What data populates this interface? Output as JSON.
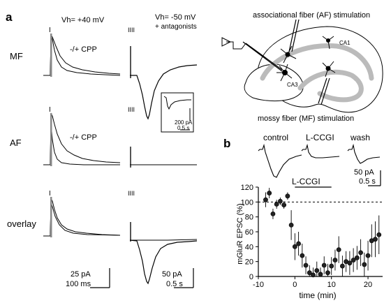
{
  "panel_a": {
    "letter": "a",
    "left_header": "Vh= +40 mV",
    "right_header_line1": "Vh= -50 mV",
    "right_header_line2": "+ antagonists",
    "rows": [
      {
        "label": "MF",
        "annotation": "-/+ CPP"
      },
      {
        "label": "AF",
        "annotation": "-/+ CPP"
      },
      {
        "label": "overlay",
        "annotation": ""
      }
    ],
    "inset_scale": {
      "y": "200 pA",
      "x": "0.5 s"
    },
    "left_scale": {
      "y": "25 pA",
      "x": "100 ms"
    },
    "right_scale": {
      "y": "50 pA",
      "x": "0.5 s"
    },
    "stim_mark_single": "I",
    "stim_mark_train": "IIII"
  },
  "diagram": {
    "af_label": "associational fiber (AF) stimulation",
    "mf_label": "mossy fiber (MF) stimulation",
    "ca1_label": "CA1",
    "ca3_label": "CA3"
  },
  "panel_b": {
    "letter": "b",
    "trace_labels": [
      "control",
      "L-CCGI",
      "wash"
    ],
    "scale": {
      "y": "50 pA",
      "x": "0.5 s"
    },
    "drug_label": "L-CCGI",
    "chart_data": {
      "type": "scatter",
      "xlabel": "time (min)",
      "ylabel": "mGluR EPSC (%)",
      "xlim": [
        -10,
        24
      ],
      "ylim": [
        0,
        120
      ],
      "xticks": [
        "-10",
        "0",
        "10",
        "20"
      ],
      "yticks": [
        "0",
        "20",
        "40",
        "60",
        "80",
        "100",
        "120"
      ],
      "reference_line": 100,
      "drug_bar": [
        0,
        10
      ],
      "points": [
        {
          "x": -8.0,
          "y": 103,
          "err": 10
        },
        {
          "x": -7.0,
          "y": 112,
          "err": 7
        },
        {
          "x": -6.0,
          "y": 84,
          "err": 7
        },
        {
          "x": -5.0,
          "y": 97,
          "err": 6
        },
        {
          "x": -4.0,
          "y": 101,
          "err": 5
        },
        {
          "x": -3.0,
          "y": 96,
          "err": 5
        },
        {
          "x": -2.0,
          "y": 108,
          "err": 5
        },
        {
          "x": -1.0,
          "y": 69,
          "err": 20
        },
        {
          "x": 0.0,
          "y": 40,
          "err": 18
        },
        {
          "x": 1.0,
          "y": 44,
          "err": 16
        },
        {
          "x": 2.0,
          "y": 28,
          "err": 16
        },
        {
          "x": 3.0,
          "y": 15,
          "err": 12
        },
        {
          "x": 4.0,
          "y": 5,
          "err": 10
        },
        {
          "x": 5.0,
          "y": 2,
          "err": 10
        },
        {
          "x": 6.0,
          "y": 8,
          "err": 12
        },
        {
          "x": 7.0,
          "y": 3,
          "err": 9
        },
        {
          "x": 8.0,
          "y": 15,
          "err": 12
        },
        {
          "x": 9.0,
          "y": 5,
          "err": 12
        },
        {
          "x": 10.0,
          "y": 14,
          "err": 12
        },
        {
          "x": 11.0,
          "y": 22,
          "err": 14
        },
        {
          "x": 12.0,
          "y": 36,
          "err": 18
        },
        {
          "x": 13.0,
          "y": 14,
          "err": 14
        },
        {
          "x": 14.0,
          "y": 20,
          "err": 14
        },
        {
          "x": 15.0,
          "y": 18,
          "err": 16
        },
        {
          "x": 16.0,
          "y": 22,
          "err": 16
        },
        {
          "x": 17.0,
          "y": 25,
          "err": 16
        },
        {
          "x": 18.0,
          "y": 32,
          "err": 18
        },
        {
          "x": 19.0,
          "y": 16,
          "err": 16
        },
        {
          "x": 20.0,
          "y": 28,
          "err": 20
        },
        {
          "x": 21.0,
          "y": 48,
          "err": 22
        },
        {
          "x": 22.0,
          "y": 50,
          "err": 24
        },
        {
          "x": 23.0,
          "y": 56,
          "err": 26
        }
      ]
    }
  }
}
